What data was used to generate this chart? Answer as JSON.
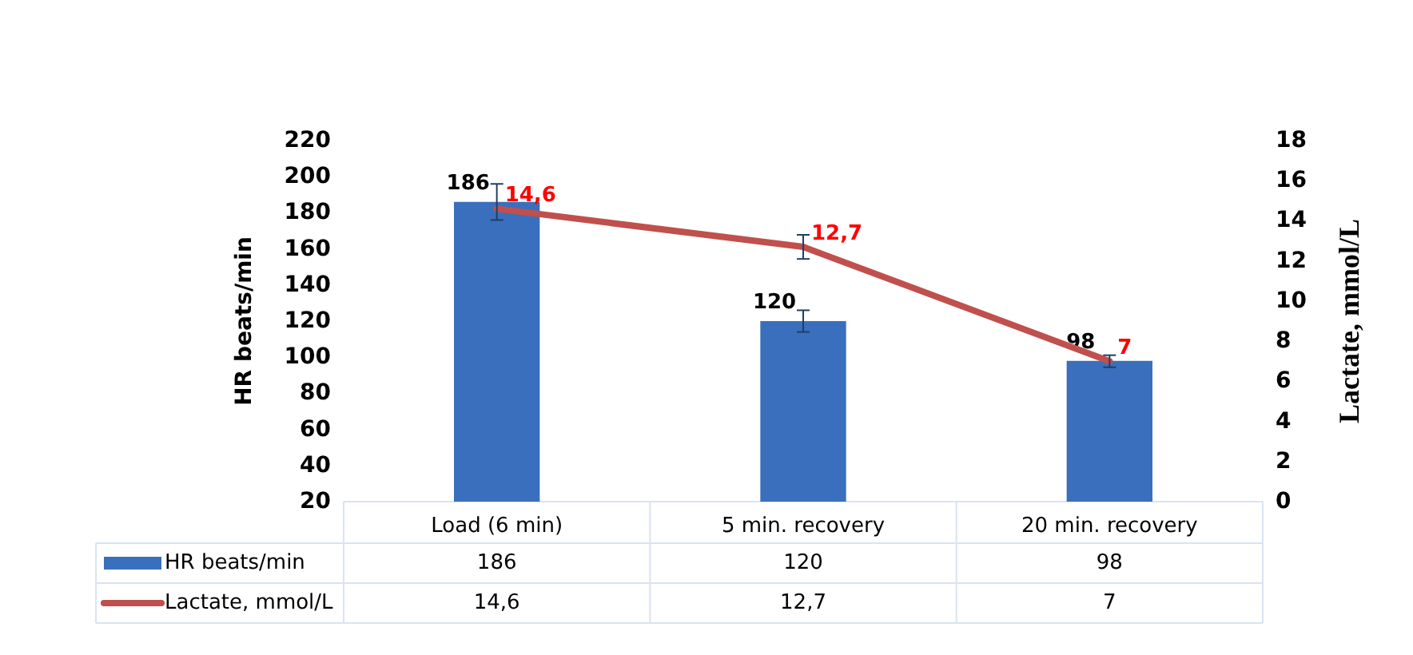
{
  "chart_data": {
    "type": "bar",
    "xlabel": null,
    "ylabel": "HR beats/min",
    "y2label": "Lactate, mmol/L",
    "categories": [
      "Load (6 min)",
      "5 min. recovery",
      "20 min. recovery"
    ],
    "series": [
      {
        "name": "HR beats/min",
        "color": "#3a6fbd",
        "values": [
          186,
          120,
          98
        ],
        "errors": [
          10,
          6,
          null
        ],
        "value_labels": [
          "186",
          "120",
          "98"
        ]
      },
      {
        "name": "Lactate, mmol/L",
        "type": "line",
        "axis": "y2",
        "color": "#c0504d",
        "values": [
          14.6,
          12.7,
          7
        ],
        "errors": [
          null,
          0.6,
          0.3
        ],
        "value_labels": [
          "14,6",
          "12,7",
          "7"
        ]
      }
    ],
    "ylim": [
      20,
      220
    ],
    "yticks": [
      20,
      40,
      60,
      80,
      100,
      120,
      140,
      160,
      180,
      200,
      220
    ],
    "y2lim": [
      0,
      18
    ],
    "y2ticks": [
      0,
      2,
      4,
      6,
      8,
      10,
      12,
      14,
      16,
      18
    ],
    "data_labels": true,
    "grid": false,
    "legend": "bottom",
    "marker": "none",
    "line_style": "solid"
  }
}
